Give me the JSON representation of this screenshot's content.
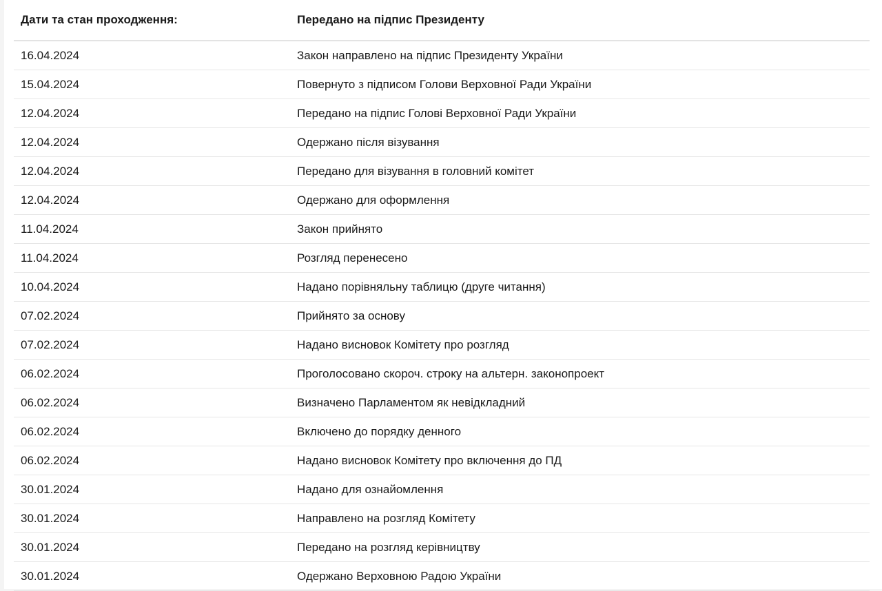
{
  "header": {
    "label": "Дати та стан проходження:",
    "status": "Передано на підпис Президенту"
  },
  "rows": [
    {
      "date": "16.04.2024",
      "event": "Закон направлено на підпис Президенту України"
    },
    {
      "date": "15.04.2024",
      "event": "Повернуто з підписом Голови Верховної Ради України"
    },
    {
      "date": "12.04.2024",
      "event": "Передано на підпис Голові Верховної Ради України"
    },
    {
      "date": "12.04.2024",
      "event": "Одержано після візування"
    },
    {
      "date": "12.04.2024",
      "event": "Передано для візування в головний комітет"
    },
    {
      "date": "12.04.2024",
      "event": "Одержано для оформлення"
    },
    {
      "date": "11.04.2024",
      "event": "Закон прийнято"
    },
    {
      "date": "11.04.2024",
      "event": "Розгляд перенесено"
    },
    {
      "date": "10.04.2024",
      "event": "Надано порівняльну таблицю (друге читання)"
    },
    {
      "date": "07.02.2024",
      "event": "Прийнято за основу"
    },
    {
      "date": "07.02.2024",
      "event": "Надано висновок Комітету про розгляд"
    },
    {
      "date": "06.02.2024",
      "event": "Проголосовано скороч. строку на альтерн. законопроект"
    },
    {
      "date": "06.02.2024",
      "event": "Визначено Парламентом як невідкладний"
    },
    {
      "date": "06.02.2024",
      "event": "Включено до порядку денного"
    },
    {
      "date": "06.02.2024",
      "event": "Надано висновок Комітету про включення до ПД"
    },
    {
      "date": "30.01.2024",
      "event": "Надано для ознайомлення"
    },
    {
      "date": "30.01.2024",
      "event": "Направлено на розгляд Комітету"
    },
    {
      "date": "30.01.2024",
      "event": "Передано на розгляд керівництву"
    },
    {
      "date": "30.01.2024",
      "event": "Одержано Верховною Радою України"
    }
  ]
}
